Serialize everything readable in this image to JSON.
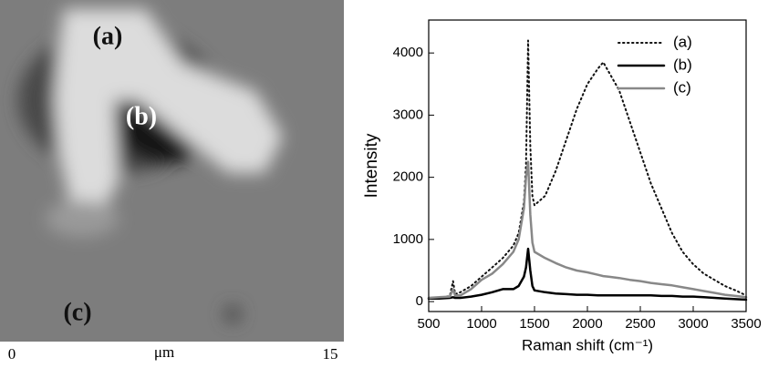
{
  "image": {
    "labels": [
      "(a)",
      "(b)",
      "(c)"
    ],
    "scale": [
      "0",
      "μm",
      "15"
    ]
  },
  "chart_data": {
    "type": "line",
    "x_label": "Raman shift (cm⁻¹)",
    "y_label": "Intensity",
    "x": [
      500,
      600,
      700,
      730,
      750,
      800,
      900,
      1000,
      1100,
      1200,
      1300,
      1350,
      1400,
      1420,
      1440,
      1460,
      1480,
      1500,
      1600,
      1700,
      1800,
      1900,
      2000,
      2100,
      2150,
      2200,
      2300,
      2400,
      2500,
      2600,
      2700,
      2800,
      2900,
      3000,
      3100,
      3200,
      3300,
      3400,
      3500
    ],
    "series": [
      {
        "name": "(a)",
        "color": "#111111",
        "dash": "dotted",
        "values": [
          50,
          60,
          90,
          330,
          120,
          150,
          250,
          400,
          550,
          700,
          900,
          1100,
          1600,
          2200,
          4200,
          2500,
          1700,
          1550,
          1700,
          2100,
          2600,
          3100,
          3500,
          3750,
          3850,
          3700,
          3400,
          2900,
          2400,
          1900,
          1500,
          1100,
          800,
          600,
          450,
          350,
          250,
          180,
          100
        ]
      },
      {
        "name": "(b)",
        "color": "#000000",
        "dash": "solid",
        "values": [
          50,
          50,
          60,
          70,
          60,
          60,
          80,
          110,
          150,
          200,
          200,
          250,
          400,
          550,
          850,
          500,
          250,
          180,
          150,
          130,
          120,
          110,
          110,
          100,
          100,
          100,
          100,
          100,
          100,
          100,
          90,
          90,
          80,
          80,
          70,
          60,
          50,
          40,
          30
        ]
      },
      {
        "name": "(c)",
        "color": "#888888",
        "dash": "solid",
        "values": [
          60,
          70,
          80,
          200,
          100,
          100,
          200,
          350,
          450,
          600,
          800,
          1000,
          1500,
          2000,
          2250,
          1400,
          950,
          800,
          700,
          620,
          550,
          500,
          470,
          430,
          410,
          400,
          380,
          350,
          330,
          300,
          280,
          260,
          230,
          200,
          170,
          140,
          110,
          90,
          70
        ]
      }
    ],
    "xlim": [
      500,
      3500
    ],
    "xticks": [
      500,
      1000,
      1500,
      2000,
      2500,
      3000,
      3500
    ],
    "ylim": [
      -160,
      4530
    ],
    "yticks": [
      0,
      1000,
      2000,
      3000,
      4000
    ],
    "legend": "upper-right"
  }
}
